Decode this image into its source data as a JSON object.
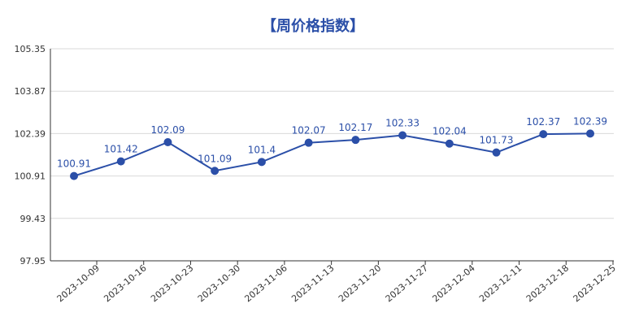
{
  "chart_data": {
    "type": "line",
    "title": "【周价格指数】",
    "xlabel": "",
    "ylabel": "",
    "categories": [
      "2023-10-09",
      "2023-10-16",
      "2023-10-23",
      "2023-10-30",
      "2023-11-06",
      "2023-11-13",
      "2023-11-20",
      "2023-11-27",
      "2023-12-04",
      "2023-12-11",
      "2023-12-18",
      "2023-12-25"
    ],
    "series": [
      {
        "values": [
          100.91,
          101.42,
          102.09,
          101.09,
          101.4,
          102.07,
          102.17,
          102.33,
          102.04,
          101.73,
          102.37,
          102.39
        ]
      }
    ],
    "data_labels": [
      "100.91",
      "101.42",
      "102.09",
      "101.09",
      "101.4",
      "102.07",
      "102.17",
      "102.33",
      "102.04",
      "101.73",
      "102.37",
      "102.39"
    ],
    "y_ticks": [
      "97.95",
      "99.43",
      "100.91",
      "102.39",
      "103.87",
      "105.35"
    ],
    "ylim": [
      97.95,
      105.35
    ],
    "grid": true,
    "legend": "none",
    "line_color": "#2b4fa8",
    "title_color": "#2b4fa8"
  }
}
